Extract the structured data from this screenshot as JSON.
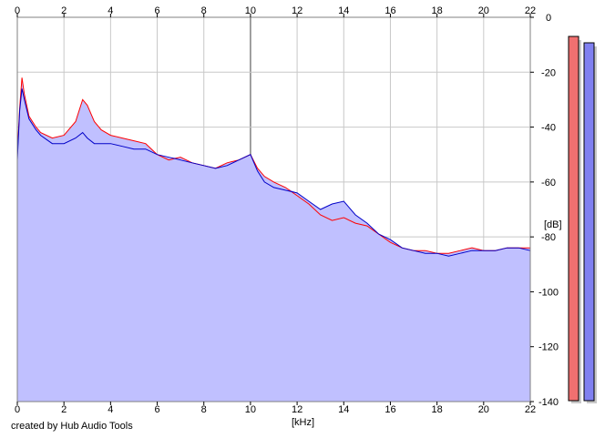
{
  "credit_text": "created by Hub Audio Tools",
  "chart_data": {
    "type": "area",
    "xlabel": "[kHz]",
    "ylabel": "[dB]",
    "xlim": [
      0,
      22
    ],
    "ylim": [
      -140,
      0
    ],
    "x_ticks": [
      0,
      2,
      4,
      6,
      8,
      10,
      12,
      14,
      16,
      18,
      20,
      22
    ],
    "y_ticks": [
      0,
      -20,
      -40,
      -60,
      -80,
      -100,
      -120,
      -140
    ],
    "y_tick_labels": [
      "0",
      "-20",
      "-40",
      "-60",
      "-80",
      "-100",
      "-120",
      "-140"
    ],
    "grid": true,
    "colors": {
      "background": "#ffffff",
      "fill": "#c0c0ff",
      "red_series": "#ff0000",
      "blue_series": "#0000c8",
      "grid": "#c8c8c8",
      "major_grid": "#808080",
      "meter_red": "#f07070",
      "meter_blue": "#8080f0"
    },
    "series": [
      {
        "color": "red",
        "x": [
          0.0,
          0.1,
          0.2,
          0.3,
          0.5,
          0.8,
          1.0,
          1.5,
          2.0,
          2.5,
          2.8,
          3.0,
          3.3,
          3.6,
          4.0,
          4.5,
          5.0,
          5.5,
          6.0,
          6.5,
          7.0,
          7.5,
          8.0,
          8.5,
          9.0,
          9.5,
          10.0,
          10.3,
          10.6,
          11.0,
          11.5,
          12.0,
          12.5,
          13.0,
          13.5,
          14.0,
          14.5,
          15.0,
          15.5,
          16.0,
          16.5,
          17.0,
          17.5,
          18.0,
          18.5,
          19.0,
          19.5,
          20.0,
          20.5,
          21.0,
          21.5,
          22.0
        ],
        "values": [
          -50,
          -33,
          -22,
          -28,
          -36,
          -40,
          -42,
          -44,
          -43,
          -38,
          -30,
          -32,
          -38,
          -41,
          -43,
          -44,
          -45,
          -46,
          -50,
          -52,
          -51,
          -53,
          -54,
          -55,
          -53,
          -52,
          -50,
          -55,
          -58,
          -60,
          -62,
          -65,
          -68,
          -72,
          -74,
          -73,
          -75,
          -76,
          -79,
          -82,
          -84,
          -85,
          -85,
          -86,
          -86,
          -85,
          -84,
          -85,
          -85,
          -84,
          -84,
          -84
        ]
      },
      {
        "color": "blue",
        "x": [
          0.0,
          0.1,
          0.2,
          0.3,
          0.5,
          0.8,
          1.0,
          1.5,
          2.0,
          2.5,
          2.8,
          3.0,
          3.3,
          3.6,
          4.0,
          4.5,
          5.0,
          5.5,
          6.0,
          6.5,
          7.0,
          7.5,
          8.0,
          8.5,
          9.0,
          9.5,
          10.0,
          10.3,
          10.6,
          11.0,
          11.5,
          12.0,
          12.5,
          13.0,
          13.5,
          14.0,
          14.5,
          15.0,
          15.5,
          16.0,
          16.5,
          17.0,
          17.5,
          18.0,
          18.5,
          19.0,
          19.5,
          20.0,
          20.5,
          21.0,
          21.5,
          22.0
        ],
        "values": [
          -52,
          -34,
          -26,
          -30,
          -37,
          -41,
          -43,
          -46,
          -46,
          -44,
          -42,
          -44,
          -46,
          -46,
          -46,
          -47,
          -48,
          -48,
          -50,
          -51,
          -52,
          -53,
          -54,
          -55,
          -54,
          -52,
          -50,
          -56,
          -60,
          -62,
          -63,
          -64,
          -67,
          -70,
          -68,
          -67,
          -72,
          -75,
          -79,
          -81,
          -84,
          -85,
          -86,
          -86,
          -87,
          -86,
          -85,
          -85,
          -85,
          -84,
          -84,
          -85
        ]
      }
    ]
  }
}
